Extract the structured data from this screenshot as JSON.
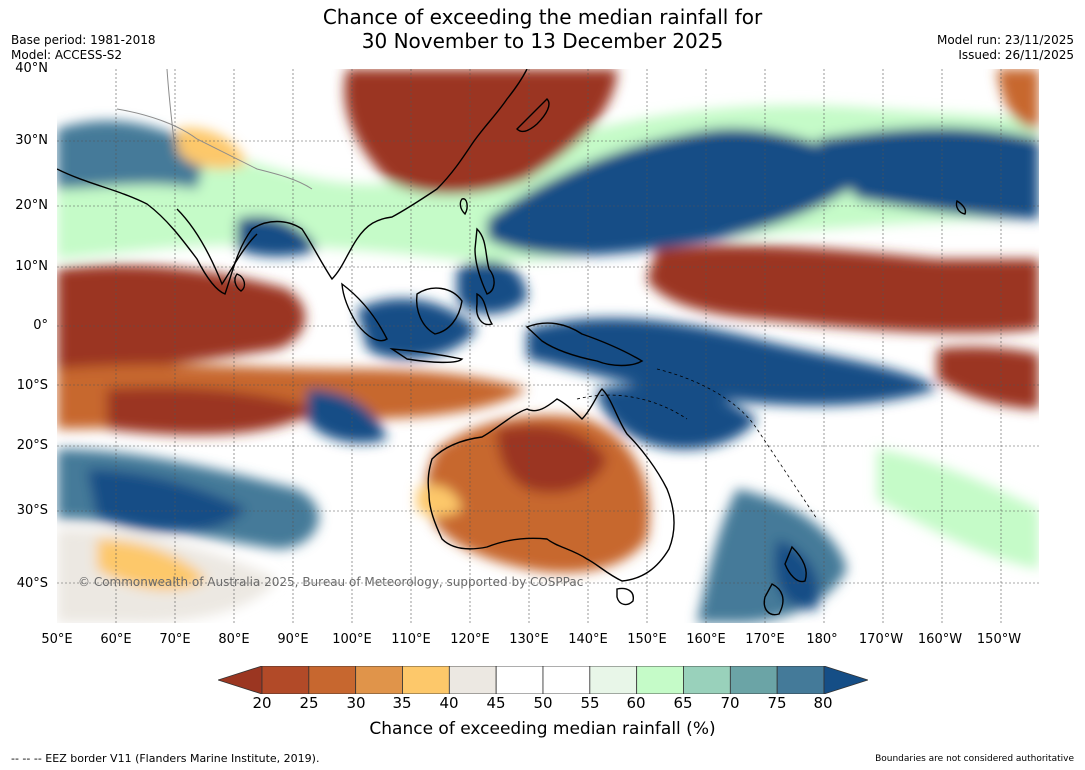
{
  "title_line1": "Chance of exceeding the median rainfall for",
  "title_line2": "30 November to 13 December 2025",
  "base_period": "Base period: 1981-2018",
  "model": "Model: ACCESS-S2",
  "model_run": "Model run: 23/11/2025",
  "issued": "Issued: 26/11/2025",
  "lat_labels": [
    "40°N",
    "30°N",
    "20°N",
    "10°N",
    "0°",
    "10°S",
    "20°S",
    "30°S",
    "40°S"
  ],
  "lon_labels": [
    "50°E",
    "60°E",
    "70°E",
    "80°E",
    "90°E",
    "100°E",
    "110°E",
    "120°E",
    "130°E",
    "140°E",
    "150°E",
    "160°E",
    "170°E",
    "180°",
    "170°W",
    "160°W",
    "150°W"
  ],
  "copyright": "© Commonwealth of Australia 2025, Bureau of Meteorology, supported by COSPPac",
  "colorbar": {
    "ticks": [
      "20",
      "25",
      "30",
      "35",
      "40",
      "45",
      "50",
      "55",
      "60",
      "65",
      "70",
      "75",
      "80"
    ],
    "colors": [
      "#9b3621",
      "#b24a28",
      "#c7672f",
      "#e0944a",
      "#fdc86a",
      "#ece8e2",
      "#ffffff",
      "#ffffff",
      "#e8f6e8",
      "#c5fbc8",
      "#99d1bb",
      "#6ba4a6",
      "#447a99",
      "#154e86"
    ],
    "label": "Chance of exceeding median rainfall (%)"
  },
  "footnote_left": "--  --  -- EEZ border V11 (Flanders Marine Institute, 2019).",
  "footnote_right": "Boundaries are not considered authoritative"
}
